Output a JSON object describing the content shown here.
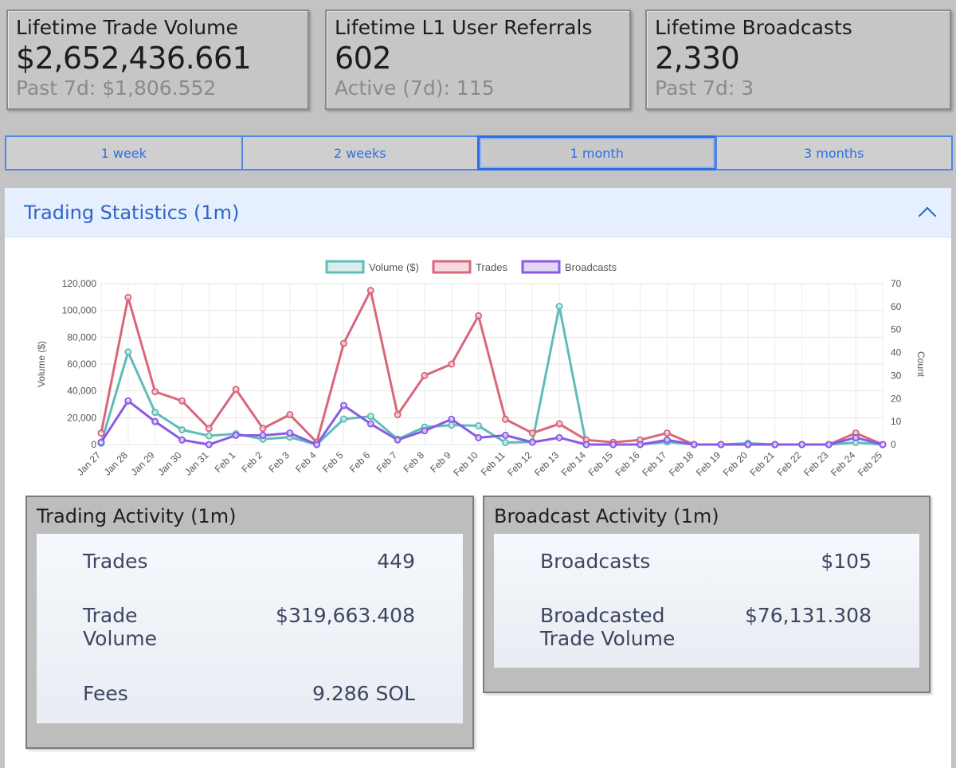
{
  "stats": [
    {
      "title": "Lifetime Trade Volume",
      "value": "$2,652,436.661",
      "sub": "Past 7d: $1,806.552"
    },
    {
      "title": "Lifetime L1 User Referrals",
      "value": "602",
      "sub": "Active (7d): 115"
    },
    {
      "title": "Lifetime Broadcasts",
      "value": "2,330",
      "sub": "Past 7d: 3"
    }
  ],
  "ranges": [
    {
      "label": "1 week",
      "active": false
    },
    {
      "label": "2 weeks",
      "active": false
    },
    {
      "label": "1 month",
      "active": true
    },
    {
      "label": "3 months",
      "active": false
    }
  ],
  "trading_stats": {
    "title": "Trading Statistics (1m)"
  },
  "chart_data": {
    "type": "line",
    "categories": [
      "Jan 27",
      "Jan 28",
      "Jan 29",
      "Jan 30",
      "Jan 31",
      "Feb 1",
      "Feb 2",
      "Feb 3",
      "Feb 4",
      "Feb 5",
      "Feb 6",
      "Feb 7",
      "Feb 8",
      "Feb 9",
      "Feb 10",
      "Feb 11",
      "Feb 12",
      "Feb 13",
      "Feb 14",
      "Feb 15",
      "Feb 16",
      "Feb 17",
      "Feb 18",
      "Feb 19",
      "Feb 20",
      "Feb 21",
      "Feb 22",
      "Feb 23",
      "Feb 24",
      "Feb 25"
    ],
    "series": [
      {
        "name": "Volume ($)",
        "axis": "left",
        "color": "#5fbcb8",
        "values": [
          1000,
          69000,
          24000,
          11000,
          6500,
          8000,
          4000,
          5500,
          0,
          19000,
          21000,
          4000,
          13000,
          14500,
          14000,
          1500,
          2000,
          103000,
          0,
          0,
          0,
          2000,
          0,
          0,
          1000,
          0,
          0,
          0,
          1500,
          0
        ]
      },
      {
        "name": "Trades",
        "axis": "right",
        "color": "#d9677c",
        "values": [
          5,
          64,
          23,
          19,
          7,
          24,
          7,
          13,
          1,
          44,
          67,
          13,
          30,
          35,
          56,
          11,
          5,
          9,
          2,
          1,
          2,
          5,
          0,
          0,
          0,
          0,
          0,
          0,
          5,
          0
        ]
      },
      {
        "name": "Broadcasts",
        "axis": "right",
        "color": "#8a5ae6",
        "values": [
          1,
          19,
          10,
          2,
          0,
          4,
          4,
          5,
          0,
          17,
          9,
          2,
          6,
          11,
          3,
          4,
          1,
          3,
          0,
          0,
          0,
          2,
          0,
          0,
          0,
          0,
          0,
          0,
          3,
          0
        ]
      }
    ],
    "ylabel": "Volume ($)",
    "y2label": "Count",
    "ylim": [
      0,
      120000
    ],
    "y2lim": [
      0,
      70
    ],
    "yticks": [
      "0",
      "20,000",
      "40,000",
      "60,000",
      "80,000",
      "100,000",
      "120,000"
    ],
    "y2ticks": [
      "0",
      "10",
      "20",
      "30",
      "40",
      "50",
      "60",
      "70"
    ],
    "grid": true,
    "legend": "top-center"
  },
  "trading_activity": {
    "title": "Trading Activity (1m)",
    "rows": [
      {
        "label": "Trades",
        "value": "449"
      },
      {
        "label": "Trade\nVolume",
        "value": "$319,663.408"
      },
      {
        "label": "Fees",
        "value": "9.286 SOL"
      }
    ]
  },
  "broadcast_activity": {
    "title": "Broadcast Activity (1m)",
    "rows": [
      {
        "label": "Broadcasts",
        "value": "$105"
      },
      {
        "label": "Broadcasted\nTrade Volume",
        "value": "$76,131.308"
      }
    ]
  }
}
